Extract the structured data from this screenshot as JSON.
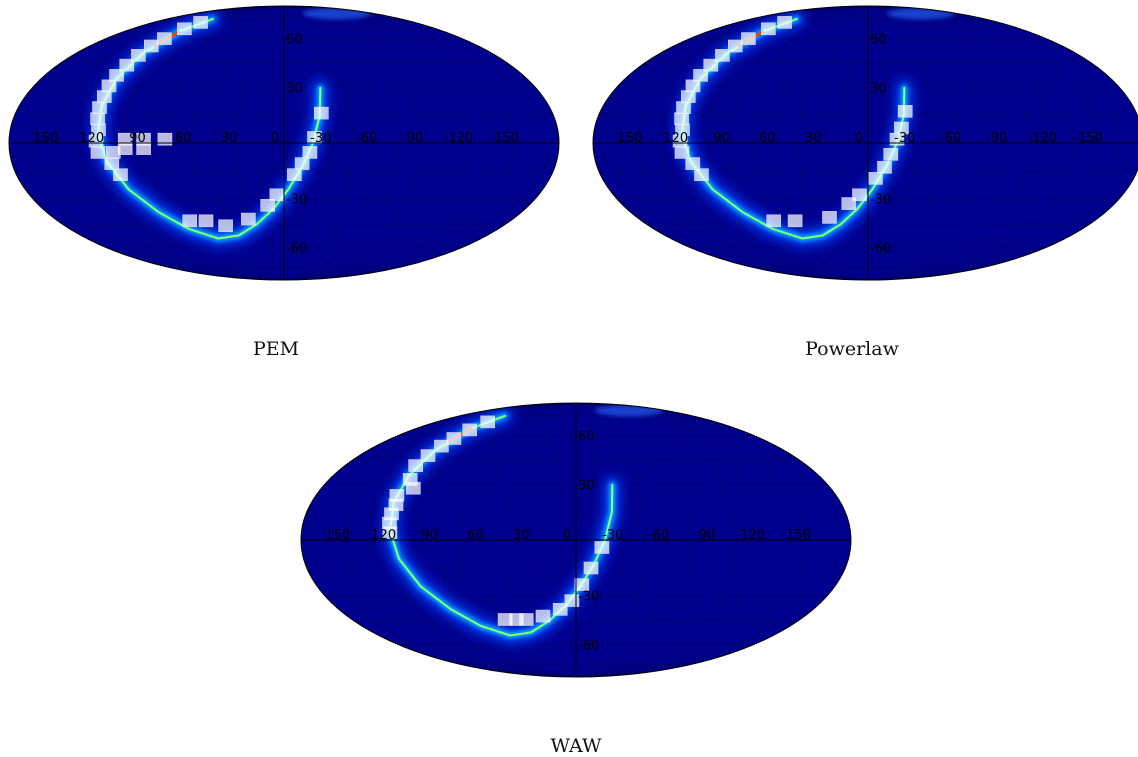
{
  "chart_data": [
    {
      "type": "heatmap",
      "projection": "mollweide",
      "title": "PEM",
      "colormap": "jet",
      "grid": true,
      "lon_ticks": [
        150,
        120,
        90,
        60,
        30,
        0,
        -30,
        -60,
        -90,
        -120,
        -150
      ],
      "lat_ticks": [
        60,
        30,
        -30,
        -60
      ],
      "ridge_path": [
        [
          110,
          75
        ],
        [
          118,
          65
        ],
        [
          122,
          50
        ],
        [
          124,
          35
        ],
        [
          124,
          20
        ],
        [
          122,
          5
        ],
        [
          117,
          -10
        ],
        [
          108,
          -25
        ],
        [
          95,
          -38
        ],
        [
          80,
          -48
        ],
        [
          60,
          -54
        ],
        [
          40,
          -52
        ],
        [
          22,
          -45
        ],
        [
          8,
          -36
        ],
        [
          -3,
          -25
        ],
        [
          -12,
          -13
        ],
        [
          -19,
          0
        ],
        [
          -24,
          15
        ],
        [
          -26,
          30
        ]
      ],
      "ridge_peak": [
        [
          118,
          65
        ],
        [
          120,
          55
        ]
      ],
      "pixels": [
        [
          115,
          72
        ],
        [
          118,
          67
        ],
        [
          121,
          60
        ],
        [
          123,
          55
        ],
        [
          124,
          49
        ],
        [
          125,
          43
        ],
        [
          126,
          37
        ],
        [
          126,
          31
        ],
        [
          125,
          25
        ],
        [
          125,
          19
        ],
        [
          124,
          13
        ],
        [
          122,
          7
        ],
        [
          104,
          2
        ],
        [
          92,
          2
        ],
        [
          78,
          2
        ],
        [
          123,
          1
        ],
        [
          104,
          -3
        ],
        [
          92,
          -3
        ],
        [
          122,
          -5
        ],
        [
          112,
          -5
        ],
        [
          114,
          -11
        ],
        [
          110,
          -17
        ],
        [
          75,
          -43
        ],
        [
          62,
          -43
        ],
        [
          48,
          -46
        ],
        [
          28,
          -42
        ],
        [
          12,
          -34
        ],
        [
          5,
          -28
        ],
        [
          -7,
          -17
        ],
        [
          -12,
          -11
        ],
        [
          -17,
          -5
        ],
        [
          -20,
          3
        ],
        [
          -25,
          16
        ]
      ]
    },
    {
      "type": "heatmap",
      "projection": "mollweide",
      "title": "Powerlaw",
      "colormap": "jet",
      "grid": true,
      "lon_ticks": [
        150,
        120,
        90,
        60,
        30,
        0,
        -30,
        -60,
        -90,
        -120,
        -150
      ],
      "lat_ticks": [
        60,
        30,
        -30,
        -60
      ],
      "ridge_path": [
        [
          110,
          75
        ],
        [
          118,
          65
        ],
        [
          122,
          50
        ],
        [
          124,
          35
        ],
        [
          124,
          20
        ],
        [
          122,
          5
        ],
        [
          117,
          -10
        ],
        [
          108,
          -25
        ],
        [
          95,
          -38
        ],
        [
          80,
          -48
        ],
        [
          60,
          -54
        ],
        [
          40,
          -52
        ],
        [
          22,
          -45
        ],
        [
          8,
          -36
        ],
        [
          -3,
          -25
        ],
        [
          -12,
          -13
        ],
        [
          -19,
          0
        ],
        [
          -24,
          15
        ],
        [
          -26,
          30
        ]
      ],
      "ridge_peak": [
        [
          118,
          65
        ],
        [
          120,
          55
        ]
      ],
      "pixels": [
        [
          115,
          72
        ],
        [
          118,
          67
        ],
        [
          121,
          60
        ],
        [
          123,
          55
        ],
        [
          124,
          49
        ],
        [
          125,
          43
        ],
        [
          126,
          37
        ],
        [
          126,
          31
        ],
        [
          125,
          25
        ],
        [
          125,
          19
        ],
        [
          124,
          13
        ],
        [
          122,
          7
        ],
        [
          123,
          1
        ],
        [
          122,
          -5
        ],
        [
          116,
          -11
        ],
        [
          112,
          -17
        ],
        [
          75,
          -43
        ],
        [
          58,
          -43
        ],
        [
          30,
          -41
        ],
        [
          14,
          -33
        ],
        [
          6,
          -28
        ],
        [
          -5,
          -19
        ],
        [
          -11,
          -13
        ],
        [
          -15,
          -6
        ],
        [
          -19,
          2
        ],
        [
          -22,
          8
        ],
        [
          -25,
          17
        ]
      ]
    },
    {
      "type": "heatmap",
      "projection": "mollweide",
      "title": "WAW",
      "colormap": "jet",
      "grid": true,
      "lon_ticks": [
        150,
        120,
        90,
        60,
        30,
        0,
        -30,
        -60,
        -90,
        -120,
        -150
      ],
      "lat_ticks": [
        60,
        30,
        -30,
        -60
      ],
      "ridge_path": [
        [
          110,
          75
        ],
        [
          118,
          65
        ],
        [
          122,
          50
        ],
        [
          124,
          35
        ],
        [
          124,
          20
        ],
        [
          122,
          5
        ],
        [
          117,
          -10
        ],
        [
          108,
          -25
        ],
        [
          95,
          -38
        ],
        [
          80,
          -48
        ],
        [
          60,
          -54
        ],
        [
          40,
          -52
        ],
        [
          22,
          -45
        ],
        [
          8,
          -36
        ],
        [
          -3,
          -25
        ],
        [
          -12,
          -13
        ],
        [
          -19,
          0
        ],
        [
          -24,
          15
        ],
        [
          -26,
          30
        ]
      ],
      "ridge_peak": [
        [
          118,
          65
        ],
        [
          120,
          55
        ]
      ],
      "pixels": [
        [
          114,
          70
        ],
        [
          117,
          64
        ],
        [
          119,
          58
        ],
        [
          121,
          53
        ],
        [
          123,
          47
        ],
        [
          125,
          41
        ],
        [
          121,
          33
        ],
        [
          115,
          28
        ],
        [
          124,
          24
        ],
        [
          122,
          19
        ],
        [
          123,
          14
        ],
        [
          123,
          9
        ],
        [
          122,
          4
        ],
        [
          57,
          -44
        ],
        [
          48,
          -44
        ],
        [
          40,
          -44
        ],
        [
          26,
          -42
        ],
        [
          12,
          -38
        ],
        [
          3,
          -33
        ],
        [
          -4,
          -24
        ],
        [
          -10,
          -15
        ],
        [
          -17,
          -4
        ]
      ]
    }
  ]
}
